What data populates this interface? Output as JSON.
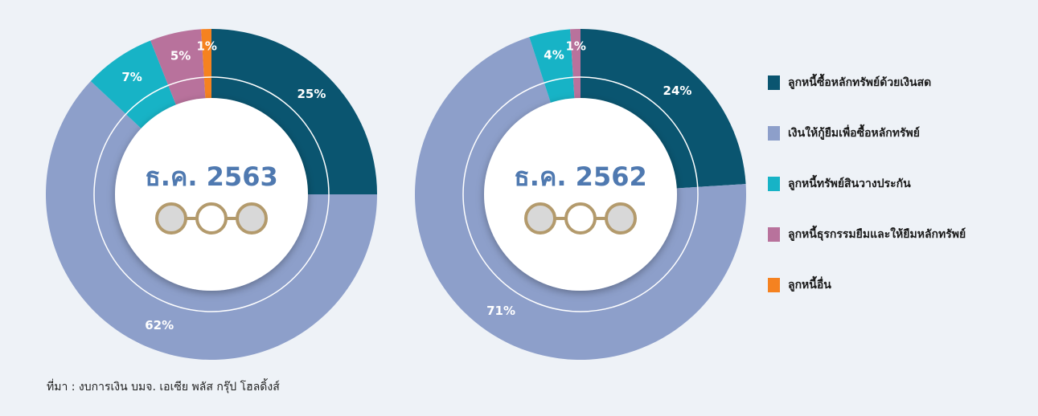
{
  "chart_data": [
    {
      "type": "pie",
      "title": "ธ.ค. 2563",
      "categories": [
        "ลูกหนี้ซื้อหลักทรัพย์ด้วยเงินสด",
        "เงินให้กู้ยืมเพื่อซื้อหลักทรัพย์",
        "ลูกหนี้ทรัพย์สินวางประกัน",
        "ลูกหนี้ธุรกรรมยืมและให้ยืมหลักทรัพย์",
        "ลูกหนี้อื่น"
      ],
      "values": [
        25,
        62,
        7,
        5,
        1
      ],
      "value_labels": [
        "25%",
        "62%",
        "7%",
        "5%",
        "1%"
      ],
      "colors": [
        "#0a5570",
        "#8d9fca",
        "#17b3c6",
        "#b8729c",
        "#f58220"
      ]
    },
    {
      "type": "pie",
      "title": "ธ.ค. 2562",
      "categories": [
        "ลูกหนี้ซื้อหลักทรัพย์ด้วยเงินสด",
        "เงินให้กู้ยืมเพื่อซื้อหลักทรัพย์",
        "ลูกหนี้ทรัพย์สินวางประกัน",
        "ลูกหนี้ธุรกรรมยืมและให้ยืมหลักทรัพย์"
      ],
      "values": [
        24,
        71,
        4,
        1
      ],
      "value_labels": [
        "24%",
        "71%",
        "4%",
        "1%"
      ],
      "colors": [
        "#0a5570",
        "#8d9fca",
        "#17b3c6",
        "#b8729c"
      ]
    }
  ],
  "note": "ที่มา : งบการเงิน บมจ. เอเซีย พลัส กรุ๊ป โฮลดิ้งส์"
}
